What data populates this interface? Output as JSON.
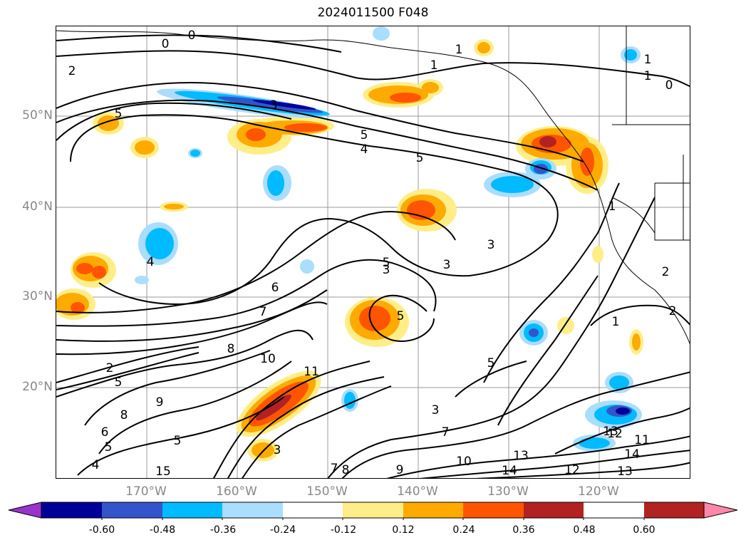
{
  "title": "2024011500 F048",
  "map": {
    "lat_labels": [
      "50°N",
      "40°N",
      "30°N",
      "20°N"
    ],
    "lon_labels": [
      "170°W",
      "160°W",
      "150°W",
      "140°W",
      "130°W",
      "120°W"
    ],
    "contour_labels": [
      "0",
      "0",
      "1",
      "2",
      "1",
      "0",
      "5",
      "3",
      "5",
      "4",
      "5",
      "1",
      "1",
      "3",
      "3",
      "6",
      "7",
      "5",
      "3",
      "4",
      "5",
      "2",
      "8",
      "10",
      "11",
      "3",
      "5",
      "8",
      "9",
      "7",
      "6",
      "5",
      "4",
      "5",
      "13",
      "14",
      "15",
      "1",
      "3",
      "7",
      "8",
      "9",
      "10",
      "13",
      "14",
      "12",
      "13",
      "12",
      "11",
      "2",
      "5",
      "1",
      "2"
    ]
  },
  "colorbar": {
    "tick_labels": [
      "-0.60",
      "-0.48",
      "-0.36",
      "-0.24",
      "-0.12",
      "0.12",
      "0.24",
      "0.36",
      "0.48",
      "0.60"
    ],
    "colors": [
      "#9933cc",
      "#000099",
      "#3355cc",
      "#00bbff",
      "#aaddff",
      "#ffffff",
      "#ffee88",
      "#ffaa00",
      "#ff5500",
      "#b22222",
      "#ff88aa"
    ]
  }
}
